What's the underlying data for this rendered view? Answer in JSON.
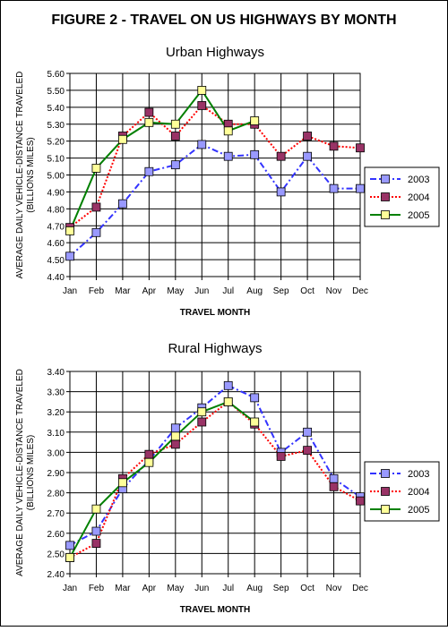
{
  "figure_title": "FIGURE 2 - TRAVEL ON US HIGHWAYS BY MONTH",
  "colors": {
    "series_2003": "#3333ff",
    "series_2004": "#ff0000",
    "series_2005": "#008000",
    "marker_2003": "#9999ff",
    "marker_2004": "#993366",
    "marker_2005": "#ffff99",
    "plot_background": "#ffffff",
    "grid": "#000000"
  },
  "chart_data": [
    {
      "type": "line",
      "title": "Urban Highways",
      "xlabel": "TRAVEL MONTH",
      "ylabel": "AVERAGE DAILY VEHICLE-DISTANCE TRAVELED",
      "ylabel_units": "(BILLIONS MILES)",
      "categories": [
        "Jan",
        "Feb",
        "Mar",
        "Apr",
        "May",
        "Jun",
        "Jul",
        "Aug",
        "Sep",
        "Oct",
        "Nov",
        "Dec"
      ],
      "ylim": [
        4.4,
        5.6
      ],
      "ytick_step": 0.1,
      "ytick_labels": [
        "4.40",
        "4.50",
        "4.60",
        "4.70",
        "4.80",
        "4.90",
        "5.00",
        "5.10",
        "5.20",
        "5.30",
        "5.40",
        "5.50",
        "5.60"
      ],
      "grid": true,
      "legend_position": "right",
      "series": [
        {
          "name": "2003",
          "style": "dash-dot",
          "values": [
            4.52,
            4.66,
            4.83,
            5.02,
            5.06,
            5.18,
            5.11,
            5.12,
            4.9,
            5.11,
            4.92,
            4.92
          ]
        },
        {
          "name": "2004",
          "style": "dotted",
          "values": [
            4.69,
            4.81,
            5.23,
            5.37,
            5.23,
            5.41,
            5.3,
            5.3,
            5.11,
            5.23,
            5.17,
            5.16
          ]
        },
        {
          "name": "2005",
          "style": "solid",
          "values": [
            4.67,
            5.04,
            5.21,
            5.31,
            5.3,
            5.5,
            5.26,
            5.32,
            null,
            null,
            null,
            null
          ]
        }
      ]
    },
    {
      "type": "line",
      "title": "Rural Highways",
      "xlabel": "TRAVEL MONTH",
      "ylabel": "AVERAGE DAILY VEHICLE-DISTANCE TRAVELED",
      "ylabel_units": "(BILLIONS MILES)",
      "categories": [
        "Jan",
        "Feb",
        "Mar",
        "Apr",
        "May",
        "Jun",
        "Jul",
        "Aug",
        "Sep",
        "Oct",
        "Nov",
        "Dec"
      ],
      "ylim": [
        2.4,
        3.4
      ],
      "ytick_step": 0.1,
      "ytick_labels": [
        "2.40",
        "2.50",
        "2.60",
        "2.70",
        "2.80",
        "2.90",
        "3.00",
        "3.10",
        "3.20",
        "3.30",
        "3.40"
      ],
      "grid": true,
      "legend_position": "right",
      "series": [
        {
          "name": "2003",
          "style": "dash-dot",
          "values": [
            2.54,
            2.61,
            2.82,
            2.96,
            3.12,
            3.22,
            3.33,
            3.27,
            3.0,
            3.1,
            2.87,
            2.78
          ]
        },
        {
          "name": "2004",
          "style": "dotted",
          "values": [
            2.48,
            2.55,
            2.87,
            2.99,
            3.04,
            3.15,
            3.25,
            3.14,
            2.98,
            3.01,
            2.83,
            2.76
          ]
        },
        {
          "name": "2005",
          "style": "solid",
          "values": [
            2.48,
            2.72,
            2.85,
            2.95,
            3.08,
            3.2,
            3.25,
            3.15,
            null,
            null,
            null,
            null
          ]
        }
      ]
    }
  ]
}
